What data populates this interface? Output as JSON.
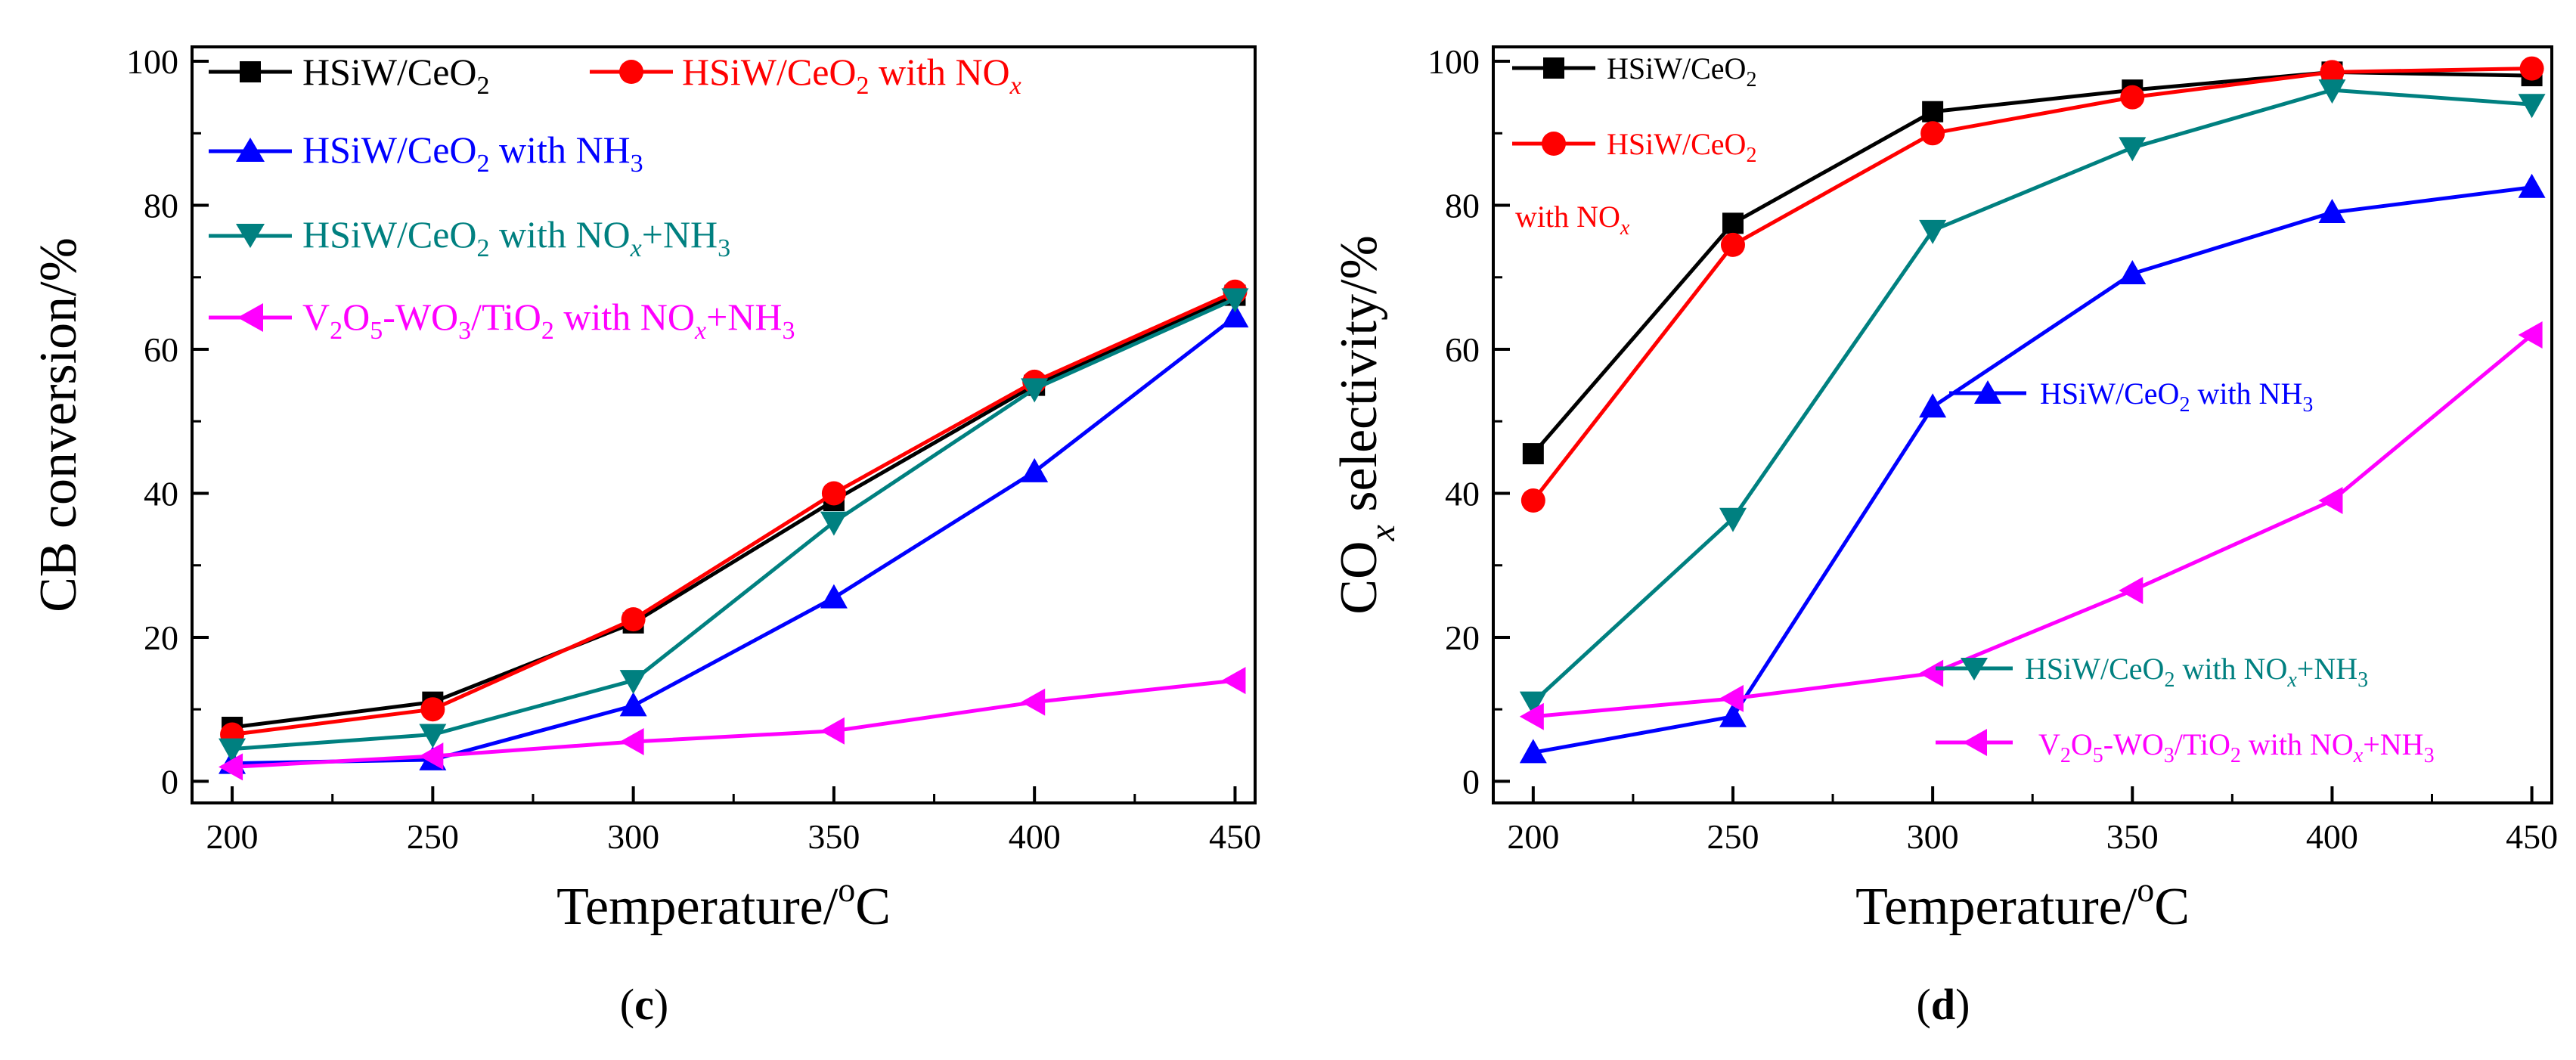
{
  "chart_data": [
    {
      "type": "line",
      "panel_label": "c",
      "xlabel": "Temperature/°C",
      "ylabel": "CB conversion/%",
      "xlim": [
        190,
        455
      ],
      "ylim": [
        -3,
        102
      ],
      "x_ticks": [
        200,
        250,
        300,
        350,
        400,
        450
      ],
      "y_ticks": [
        0,
        20,
        40,
        60,
        80,
        100
      ],
      "x": [
        200,
        250,
        300,
        350,
        400,
        450
      ],
      "legend_position": "top-left",
      "series": [
        {
          "name": "HSiW/CeO2",
          "color": "#000000",
          "marker": "square",
          "values": [
            7.5,
            11,
            22,
            39,
            55,
            67.5
          ]
        },
        {
          "name": "HSiW/CeO2 with NOx",
          "color": "#ff0000",
          "marker": "circle",
          "values": [
            6.5,
            10,
            22.5,
            40,
            55.5,
            68
          ]
        },
        {
          "name": "HSiW/CeO2 with NH3",
          "color": "#0000ff",
          "marker": "triangle-up",
          "values": [
            2.5,
            3,
            10.5,
            25.5,
            43,
            64.5
          ]
        },
        {
          "name": "HSiW/CeO2 with NOx+NH3",
          "color": "#008080",
          "marker": "triangle-down",
          "values": [
            4.5,
            6.5,
            14,
            36,
            54.5,
            67
          ]
        },
        {
          "name": "V2O5-WO3/TiO2 with NOx+NH3",
          "color": "#ff00ff",
          "marker": "triangle-left",
          "values": [
            2,
            3.5,
            5.5,
            7,
            11,
            14
          ]
        }
      ]
    },
    {
      "type": "line",
      "panel_label": "d",
      "xlabel": "Temperature/°C",
      "ylabel": "COx selectivity/%",
      "xlim": [
        190,
        455
      ],
      "ylim": [
        -3,
        102
      ],
      "x_ticks": [
        200,
        250,
        300,
        350,
        400,
        450
      ],
      "y_ticks": [
        0,
        20,
        40,
        60,
        80,
        100
      ],
      "x": [
        200,
        250,
        300,
        350,
        400,
        450
      ],
      "series": [
        {
          "name": "HSiW/CeO2",
          "color": "#000000",
          "marker": "square",
          "values": [
            45.5,
            77.5,
            93,
            96,
            98.5,
            98
          ]
        },
        {
          "name": "HSiW/CeO2 with NOx",
          "color": "#ff0000",
          "marker": "circle",
          "values": [
            39,
            74.5,
            90,
            95,
            98.5,
            99
          ]
        },
        {
          "name": "HSiW/CeO2 with NH3",
          "color": "#0000ff",
          "marker": "triangle-up",
          "values": [
            4,
            9,
            52,
            70.5,
            79,
            82.5
          ]
        },
        {
          "name": "HSiW/CeO2 with NOx+NH3",
          "color": "#008080",
          "marker": "triangle-down",
          "values": [
            11,
            36.5,
            76.5,
            88,
            96,
            94
          ]
        },
        {
          "name": "V2O5-WO3/TiO2 with NOx+NH3",
          "color": "#ff00ff",
          "marker": "triangle-left",
          "values": [
            9,
            11.5,
            15,
            26.5,
            39,
            62
          ]
        }
      ]
    }
  ]
}
